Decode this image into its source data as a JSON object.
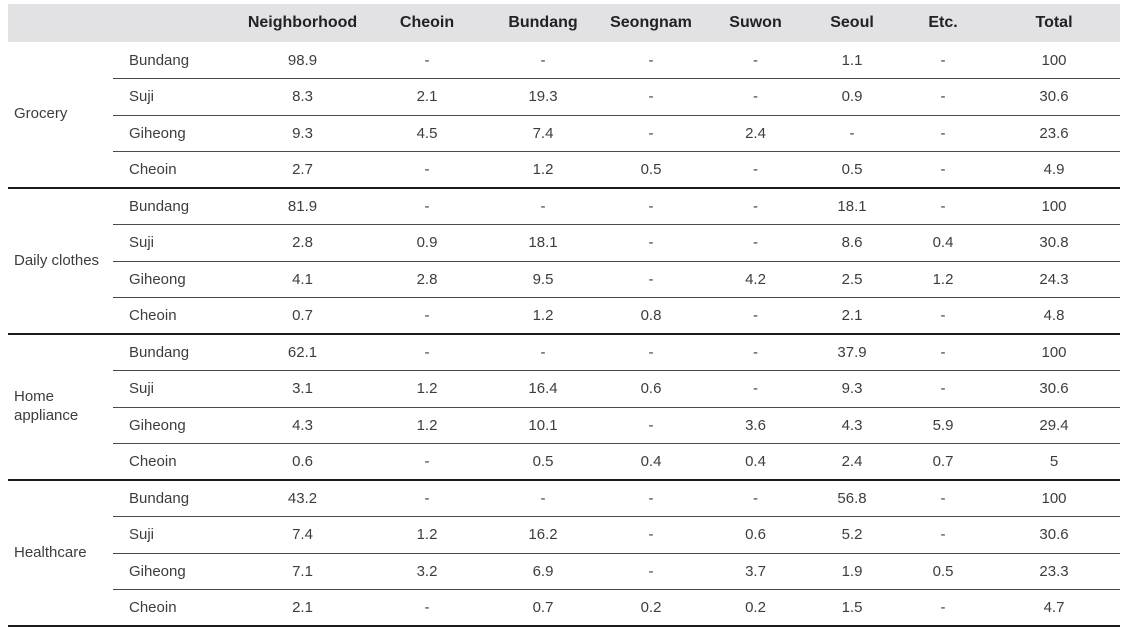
{
  "table": {
    "column_headers": [
      "Neighborhood",
      "Cheoin",
      "Bundang",
      "Seongnam",
      "Suwon",
      "Seoul",
      "Etc.",
      "Total"
    ],
    "groups": [
      {
        "label": "Grocery",
        "rows": [
          {
            "label": "Bundang",
            "values": [
              "98.9",
              "-",
              "-",
              "-",
              "-",
              "1.1",
              "-",
              "100"
            ]
          },
          {
            "label": "Suji",
            "values": [
              "8.3",
              "2.1",
              "19.3",
              "-",
              "-",
              "0.9",
              "-",
              "30.6"
            ]
          },
          {
            "label": "Giheong",
            "values": [
              "9.3",
              "4.5",
              "7.4",
              "-",
              "2.4",
              "-",
              "-",
              "23.6"
            ]
          },
          {
            "label": "Cheoin",
            "values": [
              "2.7",
              "-",
              "1.2",
              "0.5",
              "-",
              "0.5",
              "-",
              "4.9"
            ]
          }
        ]
      },
      {
        "label": "Daily clothes",
        "rows": [
          {
            "label": "Bundang",
            "values": [
              "81.9",
              "-",
              "-",
              "-",
              "-",
              "18.1",
              "-",
              "100"
            ]
          },
          {
            "label": "Suji",
            "values": [
              "2.8",
              "0.9",
              "18.1",
              "-",
              "-",
              "8.6",
              "0.4",
              "30.8"
            ]
          },
          {
            "label": "Giheong",
            "values": [
              "4.1",
              "2.8",
              "9.5",
              "-",
              "4.2",
              "2.5",
              "1.2",
              "24.3"
            ]
          },
          {
            "label": "Cheoin",
            "values": [
              "0.7",
              "-",
              "1.2",
              "0.8",
              "-",
              "2.1",
              "-",
              "4.8"
            ]
          }
        ]
      },
      {
        "label": "Home appliance",
        "rows": [
          {
            "label": "Bundang",
            "values": [
              "62.1",
              "-",
              "-",
              "-",
              "-",
              "37.9",
              "-",
              "100"
            ]
          },
          {
            "label": "Suji",
            "values": [
              "3.1",
              "1.2",
              "16.4",
              "0.6",
              "-",
              "9.3",
              "-",
              "30.6"
            ]
          },
          {
            "label": "Giheong",
            "values": [
              "4.3",
              "1.2",
              "10.1",
              "-",
              "3.6",
              "4.3",
              "5.9",
              "29.4"
            ]
          },
          {
            "label": "Cheoin",
            "values": [
              "0.6",
              "-",
              "0.5",
              "0.4",
              "0.4",
              "2.4",
              "0.7",
              "5"
            ]
          }
        ]
      },
      {
        "label": "Healthcare",
        "rows": [
          {
            "label": "Bundang",
            "values": [
              "43.2",
              "-",
              "-",
              "-",
              "-",
              "56.8",
              "-",
              "100"
            ]
          },
          {
            "label": "Suji",
            "values": [
              "7.4",
              "1.2",
              "16.2",
              "-",
              "0.6",
              "5.2",
              "-",
              "30.6"
            ]
          },
          {
            "label": "Giheong",
            "values": [
              "7.1",
              "3.2",
              "6.9",
              "-",
              "3.7",
              "1.9",
              "0.5",
              "23.3"
            ]
          },
          {
            "label": "Cheoin",
            "values": [
              "2.1",
              "-",
              "0.7",
              "0.2",
              "0.2",
              "1.5",
              "-",
              "4.7"
            ]
          }
        ]
      }
    ]
  },
  "colors": {
    "header_bg": "#e2e2e4",
    "header_text": "#222224",
    "body_text": "#3d3d3f",
    "thin_line": "#4a4a4c",
    "thick_line": "#1a1a1a"
  }
}
